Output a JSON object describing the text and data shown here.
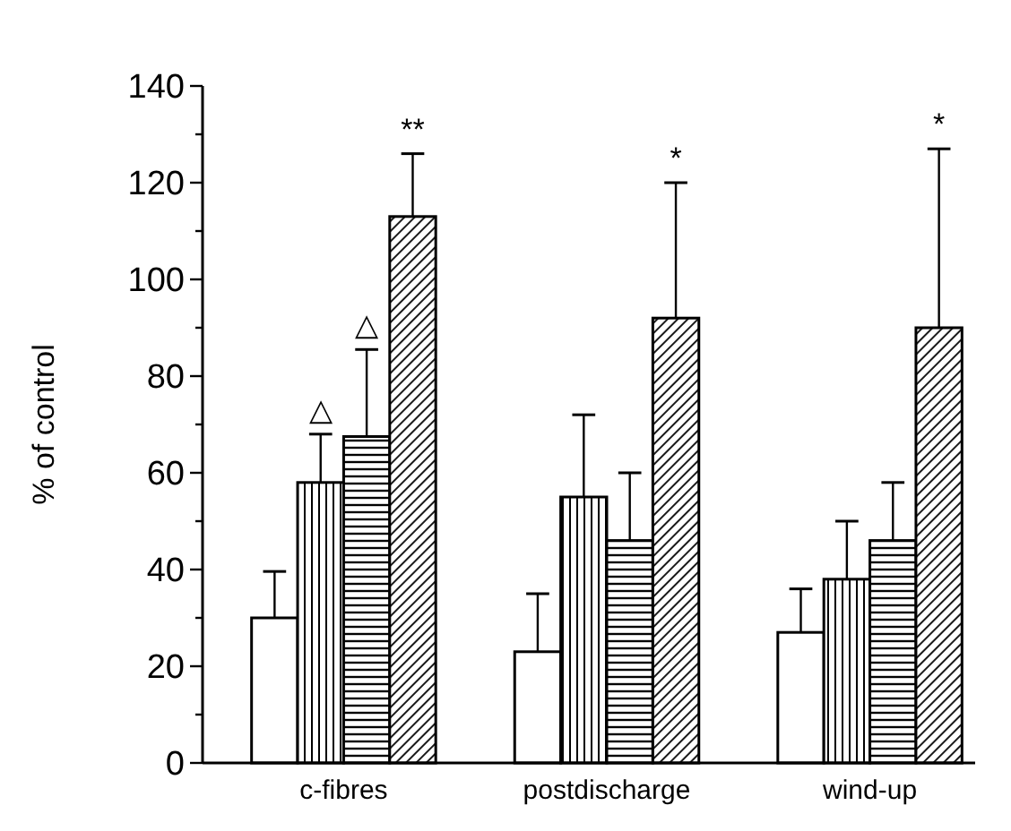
{
  "chart_data": {
    "type": "bar",
    "ylabel": "% of control",
    "categories": [
      "c-fibres",
      "postdischarge",
      "wind-up"
    ],
    "series": [
      {
        "color": "#ffffff",
        "values": [
          30,
          23,
          27
        ],
        "errors": [
          [
            30,
            39.6
          ],
          [
            23,
            35
          ],
          [
            27,
            36
          ]
        ]
      },
      {
        "color": "#000000",
        "values": [
          58,
          55,
          38
        ],
        "errors": [
          [
            58,
            68
          ],
          [
            55,
            72
          ],
          [
            38,
            50
          ]
        ]
      },
      {
        "color": "#000000",
        "values": [
          67.5,
          46,
          46
        ],
        "errors": [
          [
            67.5,
            85.5
          ],
          [
            46,
            60
          ],
          [
            46,
            58
          ]
        ]
      },
      {
        "color": "#000000",
        "values": [
          113,
          92,
          90
        ],
        "errors": [
          [
            113,
            126
          ],
          [
            92,
            120
          ],
          [
            90,
            127
          ]
        ]
      }
    ],
    "ylim": [
      0,
      140
    ],
    "yticks": [
      0,
      {
        "value": 10,
        "label": null
      },
      20,
      {
        "value": 30,
        "label": null
      },
      40,
      {
        "value": 50,
        "label": null
      },
      60,
      {
        "value": 70,
        "label": null
      },
      80,
      {
        "value": 90,
        "label": null
      },
      100,
      {
        "value": 110,
        "label": null
      },
      120,
      {
        "value": 130,
        "label": null
      },
      140
    ],
    "annotations": [
      "△",
      "△",
      "**",
      "*",
      "*"
    ],
    "grid": false
  }
}
